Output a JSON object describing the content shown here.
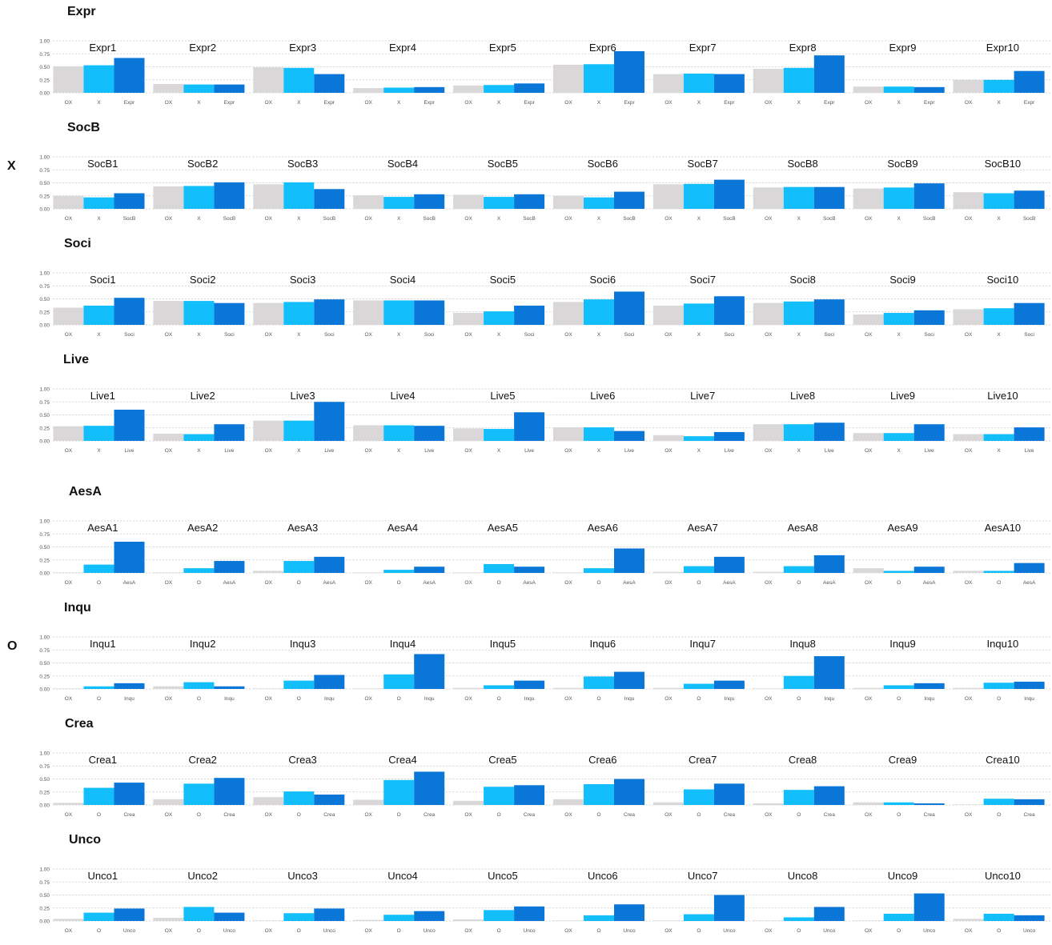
{
  "colors": {
    "OX": "#d9d7d7",
    "X": "#12bffc",
    "O": "#12bffc",
    "facet": "#0a77d8",
    "grid": "#c9c9c9",
    "tick": "#555555"
  },
  "sections": [
    {
      "label": "X"
    },
    {
      "label": "O"
    }
  ],
  "y_ticks": [
    "1.00",
    "0.75",
    "0.50",
    "0.25",
    "0.00"
  ],
  "chart_data": [
    {
      "type": "bar",
      "title": "Expr",
      "section": "X",
      "ylim": [
        0,
        1
      ],
      "categories": [
        "OX",
        "X",
        "Expr"
      ],
      "facets": [
        {
          "name": "Expr1",
          "values": [
            0.51,
            0.53,
            0.67
          ]
        },
        {
          "name": "Expr2",
          "values": [
            0.17,
            0.16,
            0.16
          ]
        },
        {
          "name": "Expr3",
          "values": [
            0.49,
            0.48,
            0.36
          ]
        },
        {
          "name": "Expr4",
          "values": [
            0.09,
            0.1,
            0.11
          ]
        },
        {
          "name": "Expr5",
          "values": [
            0.14,
            0.15,
            0.18
          ]
        },
        {
          "name": "Expr6",
          "values": [
            0.54,
            0.55,
            0.8
          ]
        },
        {
          "name": "Expr7",
          "values": [
            0.36,
            0.37,
            0.36
          ]
        },
        {
          "name": "Expr8",
          "values": [
            0.46,
            0.48,
            0.72
          ]
        },
        {
          "name": "Expr9",
          "values": [
            0.12,
            0.12,
            0.11
          ]
        },
        {
          "name": "Expr10",
          "values": [
            0.25,
            0.25,
            0.42
          ]
        }
      ]
    },
    {
      "type": "bar",
      "title": "SocB",
      "section": "X",
      "ylim": [
        0,
        1
      ],
      "categories": [
        "OX",
        "X",
        "SocB"
      ],
      "facets": [
        {
          "name": "SocB1",
          "values": [
            0.25,
            0.22,
            0.3
          ]
        },
        {
          "name": "SocB2",
          "values": [
            0.43,
            0.44,
            0.51
          ]
        },
        {
          "name": "SocB3",
          "values": [
            0.47,
            0.51,
            0.38
          ]
        },
        {
          "name": "SocB4",
          "values": [
            0.26,
            0.23,
            0.28
          ]
        },
        {
          "name": "SocB5",
          "values": [
            0.27,
            0.23,
            0.28
          ]
        },
        {
          "name": "SocB6",
          "values": [
            0.25,
            0.22,
            0.33
          ]
        },
        {
          "name": "SocB7",
          "values": [
            0.47,
            0.48,
            0.56
          ]
        },
        {
          "name": "SocB8",
          "values": [
            0.41,
            0.42,
            0.42
          ]
        },
        {
          "name": "SocB9",
          "values": [
            0.39,
            0.41,
            0.49
          ]
        },
        {
          "name": "SocB10",
          "values": [
            0.32,
            0.3,
            0.35
          ]
        }
      ]
    },
    {
      "type": "bar",
      "title": "Soci",
      "section": "X",
      "ylim": [
        0,
        1
      ],
      "categories": [
        "OX",
        "X",
        "Soci"
      ],
      "facets": [
        {
          "name": "Soci1",
          "values": [
            0.33,
            0.37,
            0.52
          ]
        },
        {
          "name": "Soci2",
          "values": [
            0.46,
            0.46,
            0.42
          ]
        },
        {
          "name": "Soci3",
          "values": [
            0.42,
            0.44,
            0.49
          ]
        },
        {
          "name": "Soci4",
          "values": [
            0.47,
            0.47,
            0.47
          ]
        },
        {
          "name": "Soci5",
          "values": [
            0.23,
            0.26,
            0.37
          ]
        },
        {
          "name": "Soci6",
          "values": [
            0.44,
            0.49,
            0.64
          ]
        },
        {
          "name": "Soci7",
          "values": [
            0.37,
            0.41,
            0.55
          ]
        },
        {
          "name": "Soci8",
          "values": [
            0.42,
            0.45,
            0.49
          ]
        },
        {
          "name": "Soci9",
          "values": [
            0.2,
            0.23,
            0.28
          ]
        },
        {
          "name": "Soci10",
          "values": [
            0.3,
            0.32,
            0.42
          ]
        }
      ]
    },
    {
      "type": "bar",
      "title": "Live",
      "section": "X",
      "ylim": [
        0,
        1
      ],
      "categories": [
        "OX",
        "X",
        "Live"
      ],
      "facets": [
        {
          "name": "Live1",
          "values": [
            0.28,
            0.29,
            0.6
          ]
        },
        {
          "name": "Live2",
          "values": [
            0.14,
            0.13,
            0.32
          ]
        },
        {
          "name": "Live3",
          "values": [
            0.39,
            0.39,
            0.75
          ]
        },
        {
          "name": "Live4",
          "values": [
            0.3,
            0.3,
            0.29
          ]
        },
        {
          "name": "Live5",
          "values": [
            0.24,
            0.23,
            0.55
          ]
        },
        {
          "name": "Live6",
          "values": [
            0.26,
            0.26,
            0.19
          ]
        },
        {
          "name": "Live7",
          "values": [
            0.11,
            0.09,
            0.17
          ]
        },
        {
          "name": "Live8",
          "values": [
            0.32,
            0.32,
            0.35
          ]
        },
        {
          "name": "Live9",
          "values": [
            0.15,
            0.15,
            0.32
          ]
        },
        {
          "name": "Live10",
          "values": [
            0.13,
            0.13,
            0.26
          ]
        }
      ]
    },
    {
      "type": "bar",
      "title": "AesA",
      "section": "O",
      "ylim": [
        0,
        1
      ],
      "categories": [
        "OX",
        "O",
        "AesA"
      ],
      "facets": [
        {
          "name": "AesA1",
          "values": [
            0.01,
            0.16,
            0.6
          ]
        },
        {
          "name": "AesA2",
          "values": [
            0.01,
            0.09,
            0.23
          ]
        },
        {
          "name": "AesA3",
          "values": [
            0.04,
            0.23,
            0.31
          ]
        },
        {
          "name": "AesA4",
          "values": [
            0.01,
            0.06,
            0.12
          ]
        },
        {
          "name": "AesA5",
          "values": [
            0.01,
            0.17,
            0.12
          ]
        },
        {
          "name": "AesA6",
          "values": [
            0.01,
            0.09,
            0.47
          ]
        },
        {
          "name": "AesA7",
          "values": [
            0.02,
            0.13,
            0.31
          ]
        },
        {
          "name": "AesA8",
          "values": [
            0.02,
            0.13,
            0.34
          ]
        },
        {
          "name": "AesA9",
          "values": [
            0.09,
            0.04,
            0.12
          ]
        },
        {
          "name": "AesA10",
          "values": [
            0.04,
            0.04,
            0.19
          ]
        }
      ]
    },
    {
      "type": "bar",
      "title": "Inqu",
      "section": "O",
      "ylim": [
        0,
        1
      ],
      "categories": [
        "OX",
        "O",
        "Inqu"
      ],
      "facets": [
        {
          "name": "Inqu1",
          "values": [
            0.01,
            0.05,
            0.11
          ]
        },
        {
          "name": "Inqu2",
          "values": [
            0.05,
            0.13,
            0.05
          ]
        },
        {
          "name": "Inqu3",
          "values": [
            0.01,
            0.16,
            0.27
          ]
        },
        {
          "name": "Inqu4",
          "values": [
            0.01,
            0.28,
            0.67
          ]
        },
        {
          "name": "Inqu5",
          "values": [
            0.02,
            0.07,
            0.16
          ]
        },
        {
          "name": "Inqu6",
          "values": [
            0.02,
            0.24,
            0.33
          ]
        },
        {
          "name": "Inqu7",
          "values": [
            0.02,
            0.1,
            0.16
          ]
        },
        {
          "name": "Inqu8",
          "values": [
            0.01,
            0.25,
            0.63
          ]
        },
        {
          "name": "Inqu9",
          "values": [
            0.02,
            0.07,
            0.11
          ]
        },
        {
          "name": "Inqu10",
          "values": [
            0.02,
            0.12,
            0.14
          ]
        }
      ]
    },
    {
      "type": "bar",
      "title": "Crea",
      "section": "O",
      "ylim": [
        0,
        1
      ],
      "categories": [
        "OX",
        "O",
        "Crea"
      ],
      "facets": [
        {
          "name": "Crea1",
          "values": [
            0.04,
            0.33,
            0.43
          ]
        },
        {
          "name": "Crea2",
          "values": [
            0.11,
            0.41,
            0.52
          ]
        },
        {
          "name": "Crea3",
          "values": [
            0.15,
            0.26,
            0.2
          ]
        },
        {
          "name": "Crea4",
          "values": [
            0.1,
            0.48,
            0.64
          ]
        },
        {
          "name": "Crea5",
          "values": [
            0.08,
            0.35,
            0.38
          ]
        },
        {
          "name": "Crea6",
          "values": [
            0.11,
            0.4,
            0.5
          ]
        },
        {
          "name": "Crea7",
          "values": [
            0.05,
            0.3,
            0.41
          ]
        },
        {
          "name": "Crea8",
          "values": [
            0.03,
            0.29,
            0.36
          ]
        },
        {
          "name": "Crea9",
          "values": [
            0.05,
            0.05,
            0.03
          ]
        },
        {
          "name": "Crea10",
          "values": [
            0.01,
            0.12,
            0.11
          ]
        }
      ]
    },
    {
      "type": "bar",
      "title": "Unco",
      "section": "O",
      "ylim": [
        0,
        1
      ],
      "categories": [
        "OX",
        "O",
        "Unco"
      ],
      "facets": [
        {
          "name": "Unco1",
          "values": [
            0.04,
            0.16,
            0.24
          ]
        },
        {
          "name": "Unco2",
          "values": [
            0.06,
            0.27,
            0.16
          ]
        },
        {
          "name": "Unco3",
          "values": [
            0.01,
            0.15,
            0.24
          ]
        },
        {
          "name": "Unco4",
          "values": [
            0.02,
            0.12,
            0.19
          ]
        },
        {
          "name": "Unco5",
          "values": [
            0.03,
            0.21,
            0.28
          ]
        },
        {
          "name": "Unco6",
          "values": [
            0.01,
            0.11,
            0.32
          ]
        },
        {
          "name": "Unco7",
          "values": [
            0.01,
            0.13,
            0.5
          ]
        },
        {
          "name": "Unco8",
          "values": [
            0.01,
            0.07,
            0.27
          ]
        },
        {
          "name": "Unco9",
          "values": [
            0.01,
            0.14,
            0.53
          ]
        },
        {
          "name": "Unco10",
          "values": [
            0.04,
            0.14,
            0.11
          ]
        }
      ]
    }
  ]
}
